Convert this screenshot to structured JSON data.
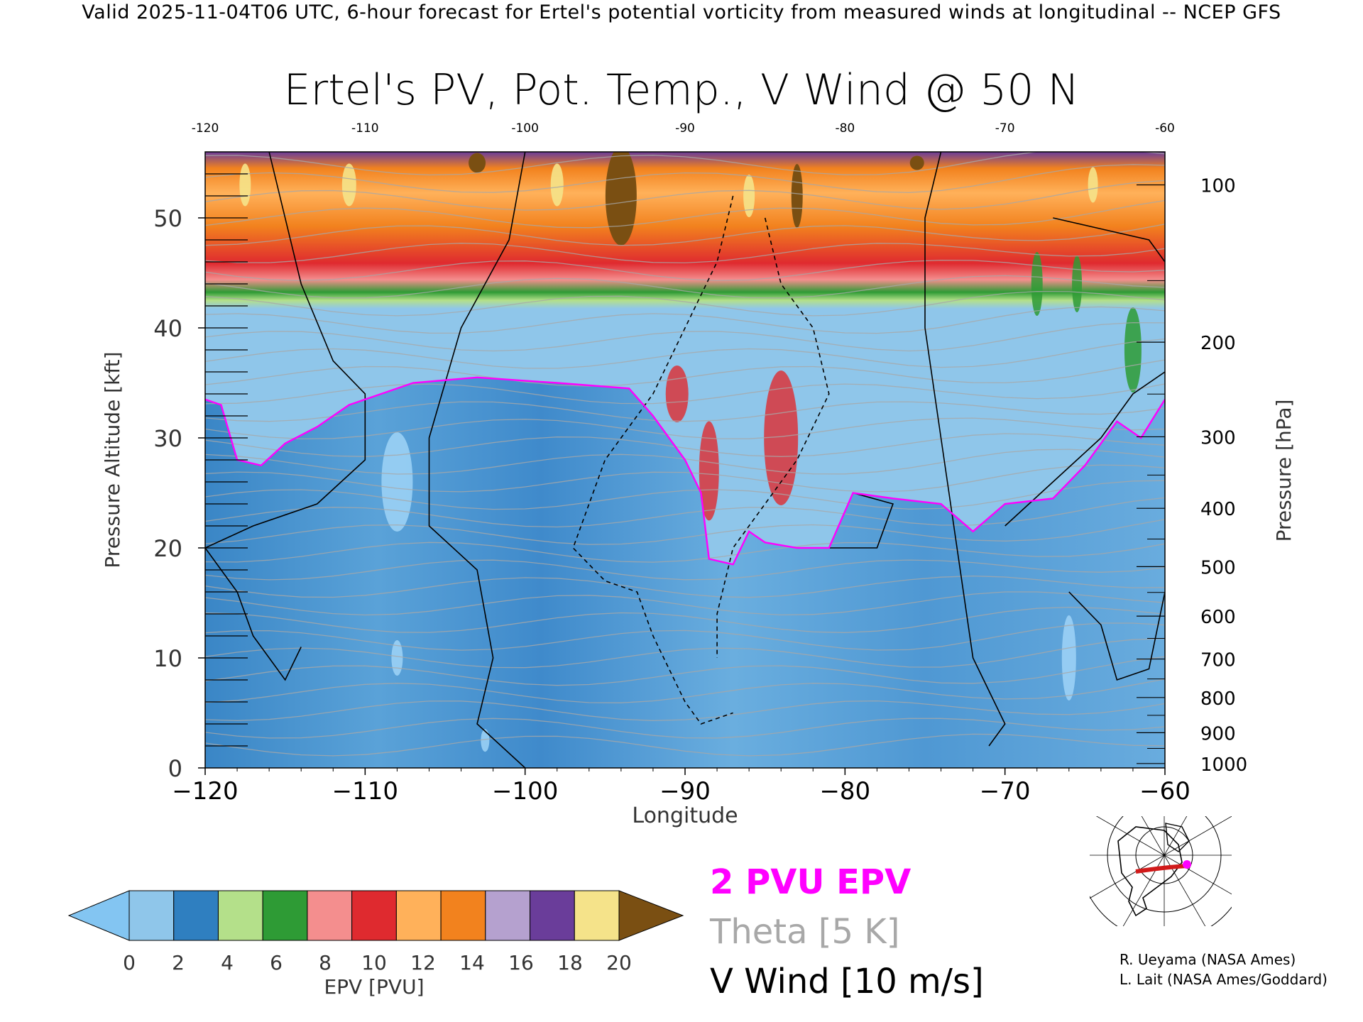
{
  "header": "Valid 2025-11-04T06 UTC, 6-hour forecast for Ertel's potential vorticity from measured winds at longitudinal -- NCEP GFS",
  "chart_data": {
    "type": "heatmap",
    "title": "Ertel's PV, Pot. Temp., V Wind @ 50 N",
    "xlabel": "Longitude",
    "ylabel": "Pressure Altitude [kft]",
    "ylabel_right": "Pressure [hPa]",
    "xlim": [
      -120,
      -60
    ],
    "ylim": [
      0,
      56
    ],
    "x_ticks": [
      -120,
      -110,
      -100,
      -90,
      -80,
      -70,
      -60
    ],
    "x_tick_labels": [
      "−120",
      "−110",
      "−100",
      "−90",
      "−80",
      "−70",
      "−60"
    ],
    "top_tick_labels": [
      "-120",
      "-110",
      "-100",
      "-90",
      "-80",
      "-70",
      "-60"
    ],
    "y_ticks": [
      0,
      10,
      20,
      30,
      40,
      50
    ],
    "pressure_ticks": [
      {
        "hPa": 100,
        "kft": 53.0
      },
      {
        "hPa": 200,
        "kft": 38.7
      },
      {
        "hPa": 300,
        "kft": 30.1
      },
      {
        "hPa": 400,
        "kft": 23.6
      },
      {
        "hPa": 500,
        "kft": 18.3
      },
      {
        "hPa": 600,
        "kft": 13.8
      },
      {
        "hPa": 700,
        "kft": 9.9
      },
      {
        "hPa": 800,
        "kft": 6.4
      },
      {
        "hPa": 900,
        "kft": 3.2
      },
      {
        "hPa": 1000,
        "kft": 0.4
      }
    ],
    "epv_colorbar": {
      "label": "EPV [PVU]",
      "tick_labels": [
        "0",
        "2",
        "4",
        "6",
        "8",
        "10",
        "12",
        "14",
        "16",
        "18",
        "20"
      ],
      "colors": [
        "#8fc6ea",
        "#2f7fc0",
        "#b4e08a",
        "#2e9b35",
        "#f48e8e",
        "#df2a2f",
        "#ffb15a",
        "#f2821e",
        "#b5a1cf",
        "#6a3d9a",
        "#f5e38a"
      ],
      "under_color": "#83c5f2",
      "over_color": "#7a4f12"
    },
    "two_pvu_tropopause_kft": [
      {
        "lon": -120,
        "kft": 33.5
      },
      {
        "lon": -119,
        "kft": 33.0
      },
      {
        "lon": -118,
        "kft": 28.0
      },
      {
        "lon": -116.5,
        "kft": 27.5
      },
      {
        "lon": -115,
        "kft": 29.5
      },
      {
        "lon": -113,
        "kft": 31.0
      },
      {
        "lon": -111,
        "kft": 33.0
      },
      {
        "lon": -109,
        "kft": 34.0
      },
      {
        "lon": -107,
        "kft": 35.0
      },
      {
        "lon": -103,
        "kft": 35.5
      },
      {
        "lon": -98,
        "kft": 35.0
      },
      {
        "lon": -93.5,
        "kft": 34.5
      },
      {
        "lon": -92,
        "kft": 32.0
      },
      {
        "lon": -90,
        "kft": 28.0
      },
      {
        "lon": -89,
        "kft": 25.0
      },
      {
        "lon": -88.5,
        "kft": 19.0
      },
      {
        "lon": -87,
        "kft": 18.5
      },
      {
        "lon": -86,
        "kft": 21.5
      },
      {
        "lon": -85,
        "kft": 20.5
      },
      {
        "lon": -83,
        "kft": 20.0
      },
      {
        "lon": -81,
        "kft": 20.0
      },
      {
        "lon": -79.5,
        "kft": 25.0
      },
      {
        "lon": -77,
        "kft": 24.5
      },
      {
        "lon": -74,
        "kft": 24.0
      },
      {
        "lon": -72,
        "kft": 21.5
      },
      {
        "lon": -70,
        "kft": 24.0
      },
      {
        "lon": -67,
        "kft": 24.5
      },
      {
        "lon": -65,
        "kft": 27.5
      },
      {
        "lon": -63,
        "kft": 31.5
      },
      {
        "lon": -61.5,
        "kft": 30.0
      },
      {
        "lon": -60,
        "kft": 33.5
      }
    ],
    "legend_entries": [
      "2 PVU EPV",
      "Theta [5 K]",
      "V Wind [10 m/s]"
    ],
    "legend_colors": [
      "#ff00ff",
      "#a8a8a8",
      "#000000"
    ]
  },
  "credits": [
    "R. Ueyama (NASA Ames)",
    "L. Lait (NASA Ames/Goddard)"
  ],
  "map_inset": {
    "icon": "polar-map-icon",
    "track_color": "#d11a1a",
    "marker_color": "#ff00ff"
  }
}
